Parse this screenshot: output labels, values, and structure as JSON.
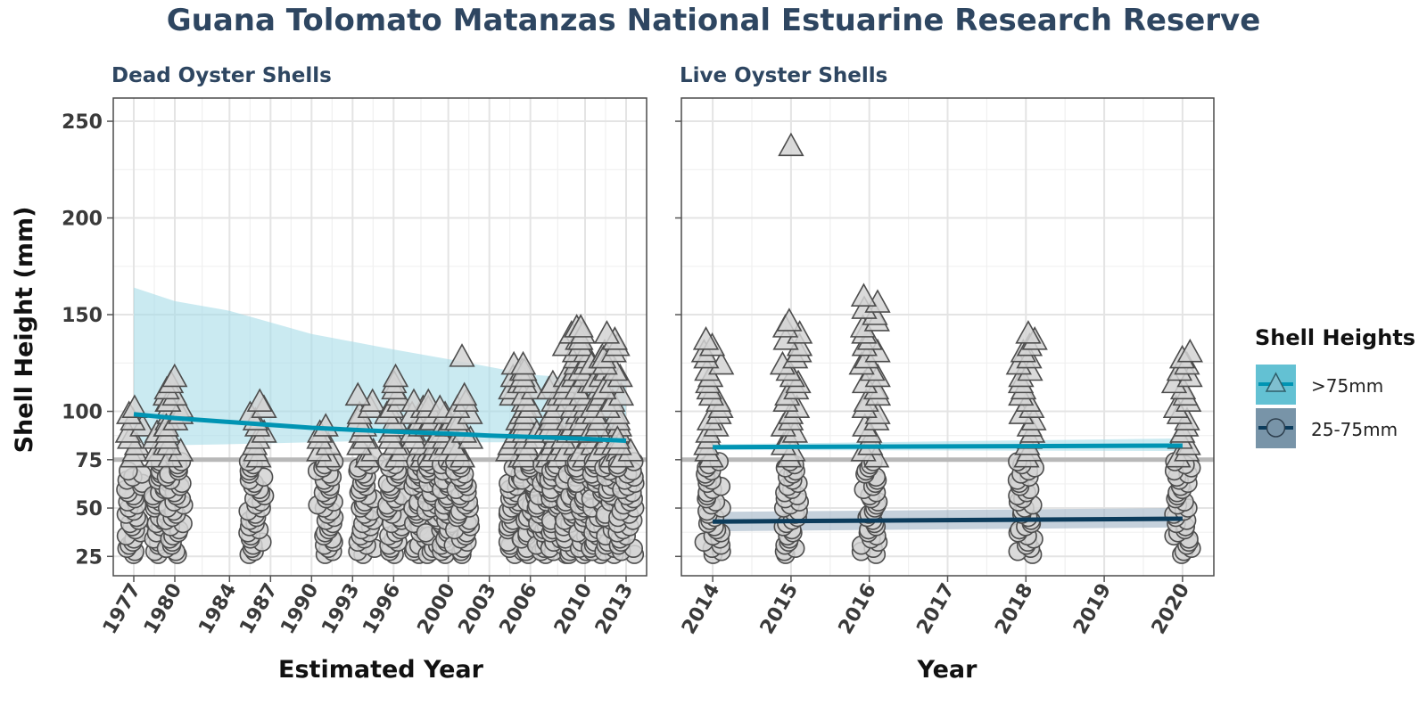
{
  "title": "Guana Tolomato Matanzas National Estuarine Research Reserve",
  "legend": {
    "title": "Shell Heights",
    "items": [
      {
        "label": ">75mm",
        "marker": "triangle",
        "line_color": "#0094b3",
        "fill_color": "#63c1d3"
      },
      {
        "label": "25-75mm",
        "marker": "circle",
        "line_color": "#0c3c5c",
        "fill_color": "#7894a8"
      }
    ]
  },
  "colors": {
    "large_line": "#0094b3",
    "large_ribbon": "#a6dce8",
    "small_line": "#0c3c5c",
    "small_ribbon": "#9eb3c4",
    "marker_fill": "#d4d4d4",
    "marker_stroke": "#4d4d4d",
    "reference_line": "#b8b8b8"
  },
  "chart_data": [
    {
      "type": "scatter",
      "title": "Dead Oyster Shells",
      "xlabel": "Estimated Year",
      "ylabel": "Shell Height (mm)",
      "xlim": [
        1975.5,
        2014.5
      ],
      "ylim": [
        15,
        262
      ],
      "x_ticks": [
        1977,
        1980,
        1984,
        1987,
        1990,
        1993,
        1996,
        2000,
        2003,
        2006,
        2010,
        2013
      ],
      "y_ticks": [
        25,
        50,
        75,
        100,
        150,
        200,
        250
      ],
      "reference_line_y": 75,
      "grid": true,
      "columns": [
        {
          "x": 1977,
          "tri_min": 76,
          "tri_max": 102,
          "circ_min": 26,
          "circ_max": 70
        },
        {
          "x": 1979,
          "tri_min": 76,
          "tri_max": 110,
          "circ_min": 26,
          "circ_max": 74
        },
        {
          "x": 1980,
          "tri_min": 76,
          "tri_max": 118,
          "circ_min": 26,
          "circ_max": 74
        },
        {
          "x": 1986,
          "tri_min": 76,
          "tri_max": 106,
          "circ_min": 26,
          "circ_max": 74
        },
        {
          "x": 1991,
          "tri_min": 76,
          "tri_max": 93,
          "circ_min": 26,
          "circ_max": 74
        },
        {
          "x": 1994,
          "tri_min": 76,
          "tri_max": 110,
          "circ_min": 26,
          "circ_max": 74
        },
        {
          "x": 1996,
          "tri_min": 76,
          "tri_max": 118,
          "circ_min": 26,
          "circ_max": 74
        },
        {
          "x": 1998,
          "tri_min": 76,
          "tri_max": 105,
          "circ_min": 26,
          "circ_max": 74
        },
        {
          "x": 1999,
          "tri_min": 76,
          "tri_max": 106,
          "circ_min": 26,
          "circ_max": 74
        },
        {
          "x": 2000,
          "tri_min": 76,
          "tri_max": 102,
          "circ_min": 26,
          "circ_max": 74
        },
        {
          "x": 2001,
          "tri_min": 76,
          "tri_max": 110,
          "circ_min": 26,
          "circ_max": 74
        },
        {
          "x": 2005,
          "tri_min": 76,
          "tri_max": 127,
          "circ_min": 26,
          "circ_max": 74
        },
        {
          "x": 2006,
          "tri_min": 76,
          "tri_max": 125,
          "circ_min": 26,
          "circ_max": 74
        },
        {
          "x": 2007,
          "tri_min": 76,
          "tri_max": 96,
          "circ_min": 26,
          "circ_max": 74
        },
        {
          "x": 2008,
          "tri_min": 76,
          "tri_max": 118,
          "circ_min": 26,
          "circ_max": 74
        },
        {
          "x": 2009,
          "tri_min": 76,
          "tri_max": 146,
          "circ_min": 26,
          "circ_max": 74
        },
        {
          "x": 2010,
          "tri_min": 76,
          "tri_max": 145,
          "circ_min": 26,
          "circ_max": 74
        },
        {
          "x": 2011,
          "tri_min": 76,
          "tri_max": 133,
          "circ_min": 26,
          "circ_max": 74
        },
        {
          "x": 2012,
          "tri_min": 76,
          "tri_max": 140,
          "circ_min": 26,
          "circ_max": 74
        },
        {
          "x": 2013,
          "tri_min": 76,
          "tri_max": 88,
          "circ_min": 26,
          "circ_max": 74
        }
      ],
      "extra_points": [
        {
          "x": 2001,
          "y": 128,
          "shape": "triangle"
        }
      ],
      "series": [
        {
          "name": ">75mm",
          "color": "#0094b3",
          "x": [
            1977,
            1980,
            1984,
            1987,
            1990,
            1993,
            1996,
            2000,
            2003,
            2006,
            2010,
            2013
          ],
          "y": [
            98.5,
            96.5,
            94.5,
            93.0,
            91.5,
            90.5,
            89.5,
            88.5,
            87.5,
            86.8,
            85.8,
            84.8
          ],
          "ribbon_lower": [
            82,
            82.5,
            83,
            83.5,
            84,
            84.5,
            84.5,
            84,
            84,
            84,
            83.5,
            83
          ],
          "ribbon_upper": [
            164,
            157,
            152,
            146,
            140,
            136,
            132,
            127,
            123,
            119,
            117,
            116
          ]
        }
      ]
    },
    {
      "type": "scatter",
      "title": "Live Oyster Shells",
      "xlabel": "Year",
      "ylabel": "Shell Height (mm)",
      "xlim": [
        2013.6,
        2020.4
      ],
      "ylim": [
        15,
        262
      ],
      "x_ticks": [
        2014,
        2015,
        2016,
        2017,
        2018,
        2019,
        2020
      ],
      "y_ticks": [
        25,
        50,
        75,
        100,
        150,
        200,
        250
      ],
      "reference_line_y": 75,
      "grid": true,
      "columns": [
        {
          "x": 2014,
          "tri_min": 76,
          "tri_max": 137,
          "circ_min": 26,
          "circ_max": 74
        },
        {
          "x": 2015,
          "tri_min": 76,
          "tri_max": 147,
          "circ_min": 26,
          "circ_max": 74
        },
        {
          "x": 2016,
          "tri_min": 76,
          "tri_max": 162,
          "circ_min": 26,
          "circ_max": 74
        },
        {
          "x": 2018,
          "tri_min": 76,
          "tri_max": 142,
          "circ_min": 26,
          "circ_max": 74
        },
        {
          "x": 2020,
          "tri_min": 76,
          "tri_max": 133,
          "circ_min": 26,
          "circ_max": 74
        }
      ],
      "extra_points": [
        {
          "x": 2015,
          "y": 237,
          "shape": "triangle"
        }
      ],
      "series": [
        {
          "name": ">75mm",
          "color": "#0094b3",
          "x": [
            2014,
            2020
          ],
          "y": [
            81.5,
            82.3
          ],
          "ribbon_lower": [
            80,
            79.5
          ],
          "ribbon_upper": [
            83,
            86
          ]
        },
        {
          "name": "25-75mm",
          "color": "#0c3c5c",
          "x": [
            2014,
            2020
          ],
          "y": [
            43,
            44.5
          ],
          "ribbon_lower": [
            38,
            40
          ],
          "ribbon_upper": [
            48,
            50
          ]
        }
      ]
    }
  ]
}
